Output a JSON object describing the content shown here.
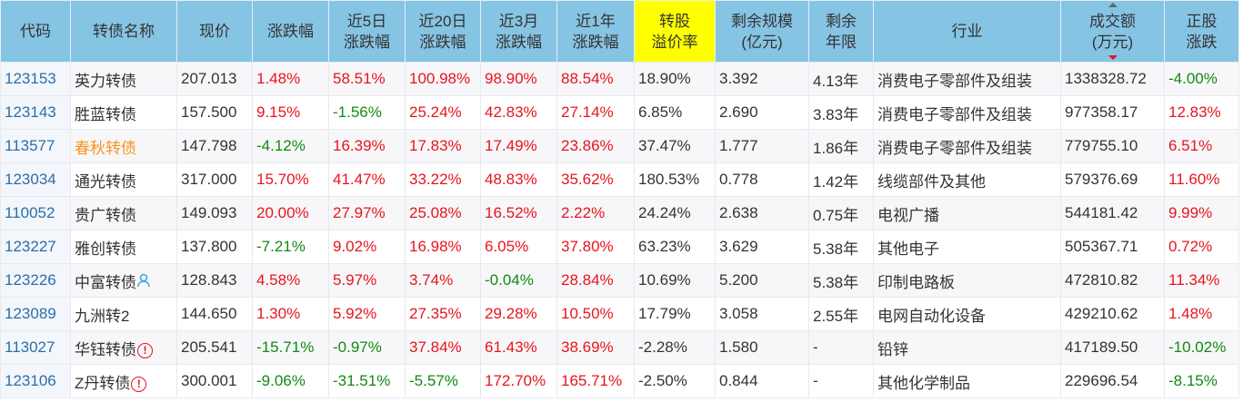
{
  "headers": [
    [
      "代码"
    ],
    [
      "转债名称"
    ],
    [
      "现价"
    ],
    [
      "涨跌幅"
    ],
    [
      "近5日",
      "涨跌幅"
    ],
    [
      "近20日",
      "涨跌幅"
    ],
    [
      "近3月",
      "涨跌幅"
    ],
    [
      "近1年",
      "涨跌幅"
    ],
    [
      "转股",
      "溢价率"
    ],
    [
      "剩余规模",
      "(亿元)"
    ],
    [
      "剩余",
      "年限"
    ],
    [
      "行业"
    ],
    [
      "成交额",
      "(万元)"
    ],
    [
      "正股",
      "涨跌"
    ]
  ],
  "colors": {
    "header": "#86c4e4",
    "highlight": "#ffff00",
    "up": "#e8141c",
    "down": "#118a11"
  },
  "rows": [
    {
      "code": "123153",
      "name": "英力转债",
      "price": "207.013",
      "chg": "1.48%",
      "d5": "58.51%",
      "d20": "100.98%",
      "m3": "98.90%",
      "y1": "88.54%",
      "premium": "18.90%",
      "size": "3.392",
      "years": "4.13年",
      "industry": "消费电子零部件及组装",
      "amount": "1338328.72",
      "stock": "-4.00%"
    },
    {
      "code": "123143",
      "name": "胜蓝转债",
      "price": "157.500",
      "chg": "9.15%",
      "d5": "-1.56%",
      "d20": "25.24%",
      "m3": "42.83%",
      "y1": "27.14%",
      "premium": "6.85%",
      "size": "2.690",
      "years": "3.83年",
      "industry": "消费电子零部件及组装",
      "amount": "977358.17",
      "stock": "12.83%"
    },
    {
      "code": "113577",
      "name": "春秋转债",
      "name_style": "orange",
      "price": "147.798",
      "chg": "-4.12%",
      "d5": "16.39%",
      "d20": "17.83%",
      "m3": "17.49%",
      "y1": "23.86%",
      "premium": "37.47%",
      "size": "1.777",
      "years": "1.86年",
      "industry": "消费电子零部件及组装",
      "amount": "779755.10",
      "stock": "6.51%"
    },
    {
      "code": "123034",
      "name": "通光转债",
      "price": "317.000",
      "chg": "15.70%",
      "d5": "41.47%",
      "d20": "33.22%",
      "m3": "48.83%",
      "y1": "35.62%",
      "premium": "180.53%",
      "size": "0.778",
      "years": "1.42年",
      "industry": "线缆部件及其他",
      "amount": "579376.69",
      "stock": "11.60%"
    },
    {
      "code": "110052",
      "name": "贵广转债",
      "price": "149.093",
      "chg": "20.00%",
      "d5": "27.97%",
      "d20": "25.08%",
      "m3": "16.52%",
      "y1": "2.22%",
      "premium": "24.24%",
      "size": "2.638",
      "years": "0.75年",
      "industry": "电视广播",
      "amount": "544181.42",
      "stock": "9.99%"
    },
    {
      "code": "123227",
      "name": "雅创转债",
      "price": "137.800",
      "chg": "-7.21%",
      "d5": "9.02%",
      "d20": "16.98%",
      "m3": "6.05%",
      "y1": "37.80%",
      "premium": "63.23%",
      "size": "3.629",
      "years": "5.38年",
      "industry": "其他电子",
      "amount": "505367.71",
      "stock": "0.72%"
    },
    {
      "code": "123226",
      "name": "中富转债",
      "icon": "person-icon",
      "price": "128.843",
      "chg": "4.58%",
      "d5": "5.97%",
      "d20": "3.74%",
      "m3": "-0.04%",
      "y1": "28.84%",
      "premium": "10.69%",
      "size": "5.200",
      "years": "5.38年",
      "industry": "印制电路板",
      "amount": "472810.82",
      "stock": "11.34%"
    },
    {
      "code": "123089",
      "name": "九洲转2",
      "price": "144.650",
      "chg": "1.30%",
      "d5": "5.92%",
      "d20": "27.35%",
      "m3": "29.28%",
      "y1": "10.50%",
      "premium": "17.79%",
      "size": "3.058",
      "years": "2.55年",
      "industry": "电网自动化设备",
      "amount": "429210.62",
      "stock": "1.48%"
    },
    {
      "code": "113027",
      "name": "华钰转债",
      "icon": "warning-icon",
      "price": "205.541",
      "chg": "-15.71%",
      "d5": "-0.97%",
      "d20": "37.84%",
      "m3": "61.43%",
      "y1": "38.69%",
      "premium": "-2.28%",
      "size": "1.580",
      "years": "-",
      "industry": "铅锌",
      "amount": "417189.50",
      "stock": "-10.02%"
    },
    {
      "code": "123106",
      "name": "Z丹转债",
      "icon": "warning-icon",
      "price": "300.001",
      "chg": "-9.06%",
      "d5": "-31.51%",
      "d20": "-5.57%",
      "m3": "172.70%",
      "y1": "165.71%",
      "premium": "-2.50%",
      "size": "0.844",
      "years": "-",
      "industry": "其他化学制品",
      "amount": "229696.54",
      "stock": "-8.15%"
    }
  ]
}
